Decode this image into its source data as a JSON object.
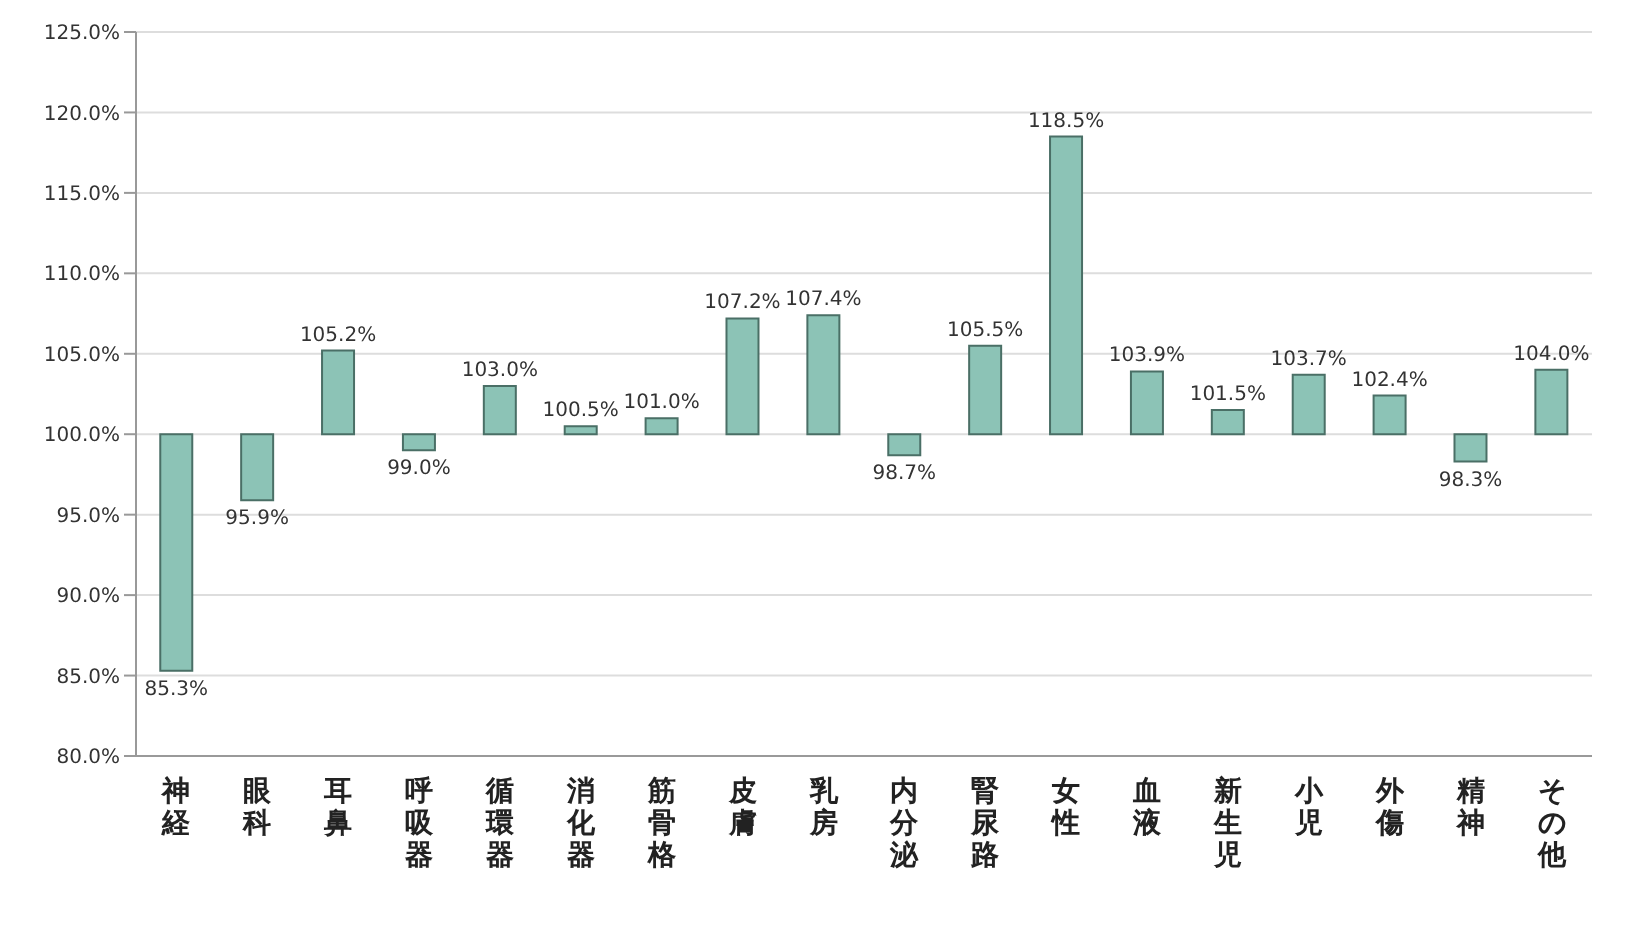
{
  "chart_data": {
    "type": "bar",
    "categories": [
      "神経",
      "眼科",
      "耳鼻",
      "呼吸器",
      "循環器",
      "消化器",
      "筋骨格",
      "皮膚",
      "乳房",
      "内分泌",
      "腎尿路",
      "女性",
      "血液",
      "新生児",
      "小児",
      "外傷",
      "精神",
      "その他"
    ],
    "base": [
      100,
      100,
      100,
      100,
      100,
      100,
      100,
      100,
      100,
      100,
      100,
      100,
      100,
      100,
      100,
      100,
      100,
      100
    ],
    "values": [
      -14.7,
      -4.1,
      5.2,
      -1.0,
      3.0,
      0.5,
      1.0,
      7.2,
      7.4,
      -1.3,
      5.5,
      18.5,
      3.9,
      1.5,
      3.7,
      2.4,
      -1.7,
      4.0
    ],
    "value_labels": [
      "85.3%",
      "95.9%",
      "105.2%",
      "99.0%",
      "103.0%",
      "100.5%",
      "101.0%",
      "107.2%",
      "107.4%",
      "98.7%",
      "105.5%",
      "118.5%",
      "103.9%",
      "101.5%",
      "103.7%",
      "102.4%",
      "98.3%",
      "104.0%"
    ],
    "color": "#8cc3b6",
    "ylim": [
      80,
      125
    ],
    "yticks": [
      {
        "value": 80,
        "label": "80.0%"
      },
      {
        "value": 85,
        "label": "85.0%"
      },
      {
        "value": 90,
        "label": "90.0%"
      },
      {
        "value": 95,
        "label": "95.0%"
      },
      {
        "value": 100,
        "label": "100.0%"
      },
      {
        "value": 105,
        "label": "105.0%"
      },
      {
        "value": 110,
        "label": "110.0%"
      },
      {
        "value": 115,
        "label": "115.0%"
      },
      {
        "value": 120,
        "label": "120.0%"
      },
      {
        "value": 125,
        "label": "125.0%"
      }
    ],
    "grid": "y"
  }
}
